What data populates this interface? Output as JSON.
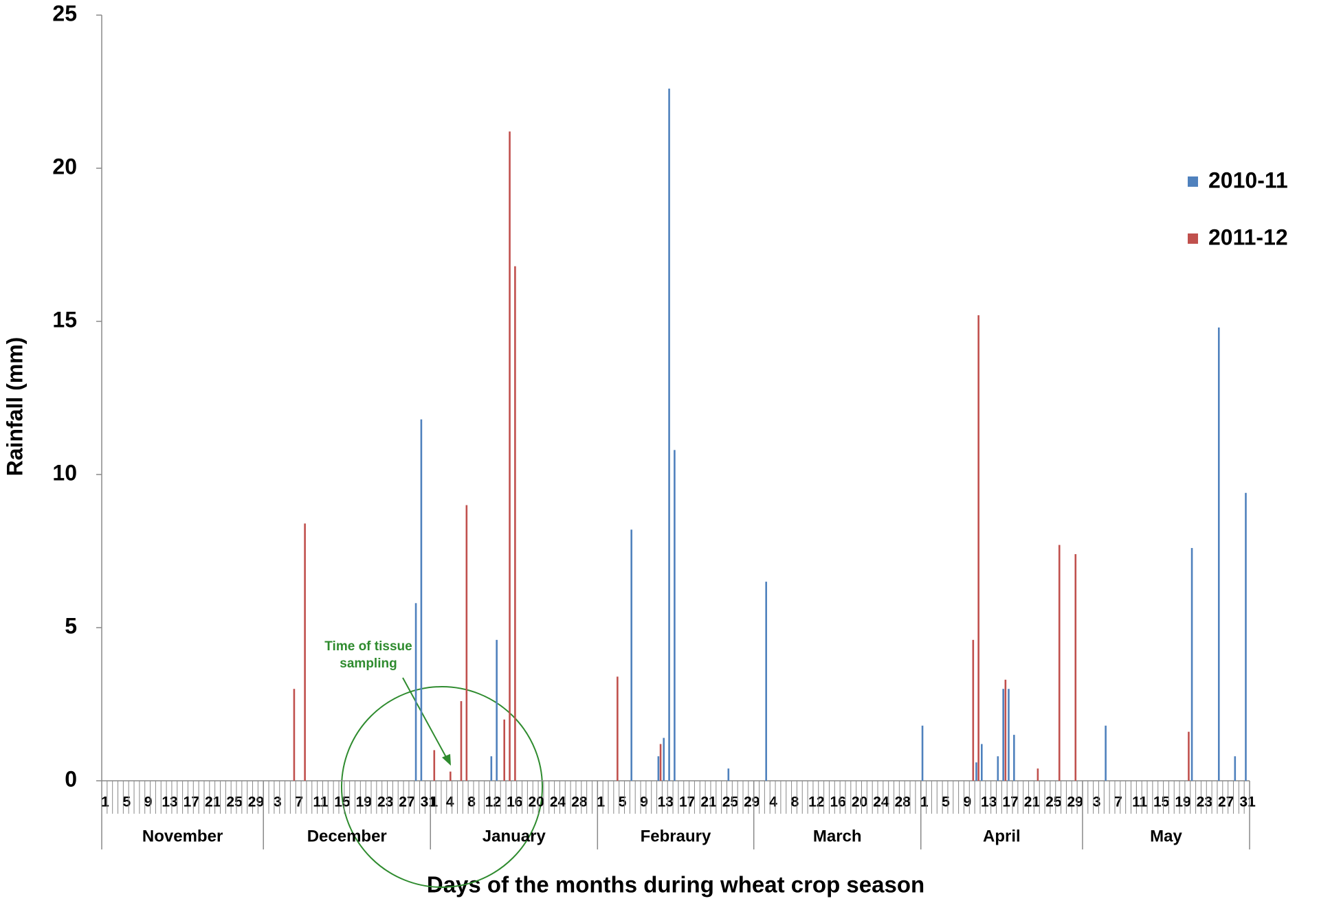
{
  "chart_data": {
    "type": "bar",
    "x_label": "Days of the months during wheat crop season",
    "y_label": "Rainfall (mm)",
    "ylim": [
      0,
      25
    ],
    "yticks": [
      0,
      5,
      10,
      15,
      20,
      25
    ],
    "legend": "right",
    "annotation": [
      "Time of tissue",
      "sampling"
    ],
    "months": [
      {
        "name": "November",
        "days": [
          "1",
          null,
          null,
          null,
          "5",
          null,
          null,
          null,
          "9",
          null,
          null,
          null,
          "13",
          null,
          null,
          null,
          "17",
          null,
          null,
          null,
          "21",
          null,
          null,
          null,
          "25",
          null,
          null,
          null,
          "29",
          null
        ]
      },
      {
        "name": "December",
        "days": [
          null,
          null,
          "3",
          null,
          null,
          null,
          "7",
          null,
          null,
          null,
          "11",
          null,
          null,
          null,
          "15",
          null,
          null,
          null,
          "19",
          null,
          null,
          null,
          "23",
          null,
          null,
          null,
          "27",
          null,
          null,
          null,
          "31"
        ]
      },
      {
        "name": "January",
        "days": [
          "1",
          null,
          null,
          "4",
          null,
          null,
          null,
          "8",
          null,
          null,
          null,
          "12",
          null,
          null,
          null,
          "16",
          null,
          null,
          null,
          "20",
          null,
          null,
          null,
          "24",
          null,
          null,
          null,
          "28",
          null,
          null,
          null
        ]
      },
      {
        "name": "Febraury",
        "days": [
          "1",
          null,
          null,
          null,
          "5",
          null,
          null,
          null,
          "9",
          null,
          null,
          null,
          "13",
          null,
          null,
          null,
          "17",
          null,
          null,
          null,
          "21",
          null,
          null,
          null,
          "25",
          null,
          null,
          null,
          "29"
        ]
      },
      {
        "name": "March",
        "days": [
          null,
          null,
          null,
          "4",
          null,
          null,
          null,
          "8",
          null,
          null,
          null,
          "12",
          null,
          null,
          null,
          "16",
          null,
          null,
          null,
          "20",
          null,
          null,
          null,
          "24",
          null,
          null,
          null,
          "28",
          null,
          null,
          null
        ]
      },
      {
        "name": "April",
        "days": [
          "1",
          null,
          null,
          null,
          "5",
          null,
          null,
          null,
          "9",
          null,
          null,
          null,
          "13",
          null,
          null,
          null,
          "17",
          null,
          null,
          null,
          "21",
          null,
          null,
          null,
          "25",
          null,
          null,
          null,
          "29",
          null
        ]
      },
      {
        "name": "May",
        "days": [
          null,
          null,
          "3",
          null,
          null,
          null,
          "7",
          null,
          null,
          null,
          "11",
          null,
          null,
          null,
          "15",
          null,
          null,
          null,
          "19",
          null,
          null,
          null,
          "23",
          null,
          null,
          null,
          "27",
          null,
          null,
          null,
          "31"
        ]
      }
    ],
    "series": [
      {
        "name": "2010-11",
        "color": "#4f81bd",
        "values": [
          [
            0,
            0,
            0,
            0,
            0,
            0,
            0,
            0,
            0,
            0,
            0,
            0,
            0,
            0,
            0,
            0,
            0,
            0,
            0,
            0,
            0,
            0,
            0,
            0,
            0,
            0,
            0,
            0,
            0,
            0
          ],
          [
            0,
            0,
            0,
            0,
            0,
            0,
            0,
            0,
            0,
            0,
            0,
            0,
            0,
            0,
            0,
            0,
            0,
            0,
            0,
            0,
            0,
            0,
            0,
            0,
            0,
            0,
            0,
            0,
            5.8,
            11.8,
            0
          ],
          [
            0,
            0,
            0,
            0,
            0,
            0,
            0,
            0,
            0,
            0,
            0,
            0.8,
            4.6,
            0,
            0,
            0,
            0,
            0,
            0,
            0,
            0,
            0,
            0,
            0,
            0,
            0,
            0,
            0,
            0,
            0,
            0
          ],
          [
            0,
            0,
            0,
            0,
            0,
            0,
            8.2,
            0,
            0,
            0,
            0,
            0.8,
            1.4,
            22.6,
            10.8,
            0,
            0,
            0,
            0,
            0,
            0,
            0,
            0,
            0,
            0.4,
            0,
            0,
            0,
            0
          ],
          [
            0,
            0,
            6.5,
            0,
            0,
            0,
            0,
            0,
            0,
            0,
            0,
            0,
            0,
            0,
            0,
            0,
            0,
            0,
            0,
            0,
            0,
            0,
            0,
            0,
            0,
            0,
            0,
            0,
            0,
            0,
            0
          ],
          [
            1.8,
            0,
            0,
            0,
            0,
            0,
            0,
            0,
            0,
            0,
            0.6,
            1.2,
            0,
            0,
            0.8,
            3,
            3,
            1.5,
            0,
            0,
            0,
            0,
            0,
            0,
            0,
            0,
            0,
            0,
            0,
            0
          ],
          [
            0,
            0,
            0,
            0,
            1.8,
            0,
            0,
            0,
            0,
            0,
            0,
            0,
            0,
            0,
            0,
            0,
            0,
            0,
            0,
            0,
            7.6,
            0,
            0,
            0,
            0,
            14.8,
            0,
            0,
            0.8,
            0,
            9.4
          ]
        ]
      },
      {
        "name": "2011-12",
        "color": "#c0504d",
        "values": [
          [
            0,
            0,
            0,
            0,
            0,
            0,
            0,
            0,
            0,
            0,
            0,
            0,
            0,
            0,
            0,
            0,
            0,
            0,
            0,
            0,
            0,
            0,
            0,
            0,
            0,
            0,
            0,
            0,
            0,
            0
          ],
          [
            0,
            0,
            0,
            0,
            0,
            3,
            0,
            8.4,
            0,
            0,
            0,
            0,
            0,
            0,
            0,
            0,
            0,
            0,
            0,
            0,
            0,
            0,
            0,
            0,
            0,
            0,
            0,
            0,
            0,
            0,
            0
          ],
          [
            1,
            0,
            0,
            0.3,
            0,
            2.6,
            9,
            0,
            0,
            0,
            0,
            0,
            0,
            2,
            21.2,
            16.8,
            0,
            0,
            0,
            0,
            0,
            0,
            0,
            0,
            0,
            0,
            0,
            0,
            0,
            0,
            0
          ],
          [
            0,
            0,
            0,
            3.4,
            0,
            0,
            0,
            0,
            0,
            0,
            0,
            1.2,
            0,
            0,
            0,
            0,
            0,
            0,
            0,
            0,
            0,
            0,
            0,
            0,
            0,
            0,
            0,
            0,
            0
          ],
          [
            0,
            0,
            0,
            0,
            0,
            0,
            0,
            0,
            0,
            0,
            0,
            0,
            0,
            0,
            0,
            0,
            0,
            0,
            0,
            0,
            0,
            0,
            0,
            0,
            0,
            0,
            0,
            0,
            0,
            0,
            0
          ],
          [
            0,
            0,
            0,
            0,
            0,
            0,
            0,
            0,
            0,
            4.6,
            15.2,
            0,
            0,
            0,
            0,
            3.3,
            0,
            0,
            0,
            0,
            0,
            0.4,
            0,
            0,
            0,
            7.7,
            0,
            0,
            7.4,
            0
          ],
          [
            0,
            0,
            0,
            0,
            0,
            0,
            0,
            0,
            0,
            0,
            0,
            0,
            0,
            0,
            0,
            0,
            0,
            0,
            0,
            1.6,
            0,
            0,
            0,
            0,
            0,
            0,
            0,
            0,
            0,
            0,
            0
          ]
        ]
      }
    ]
  }
}
